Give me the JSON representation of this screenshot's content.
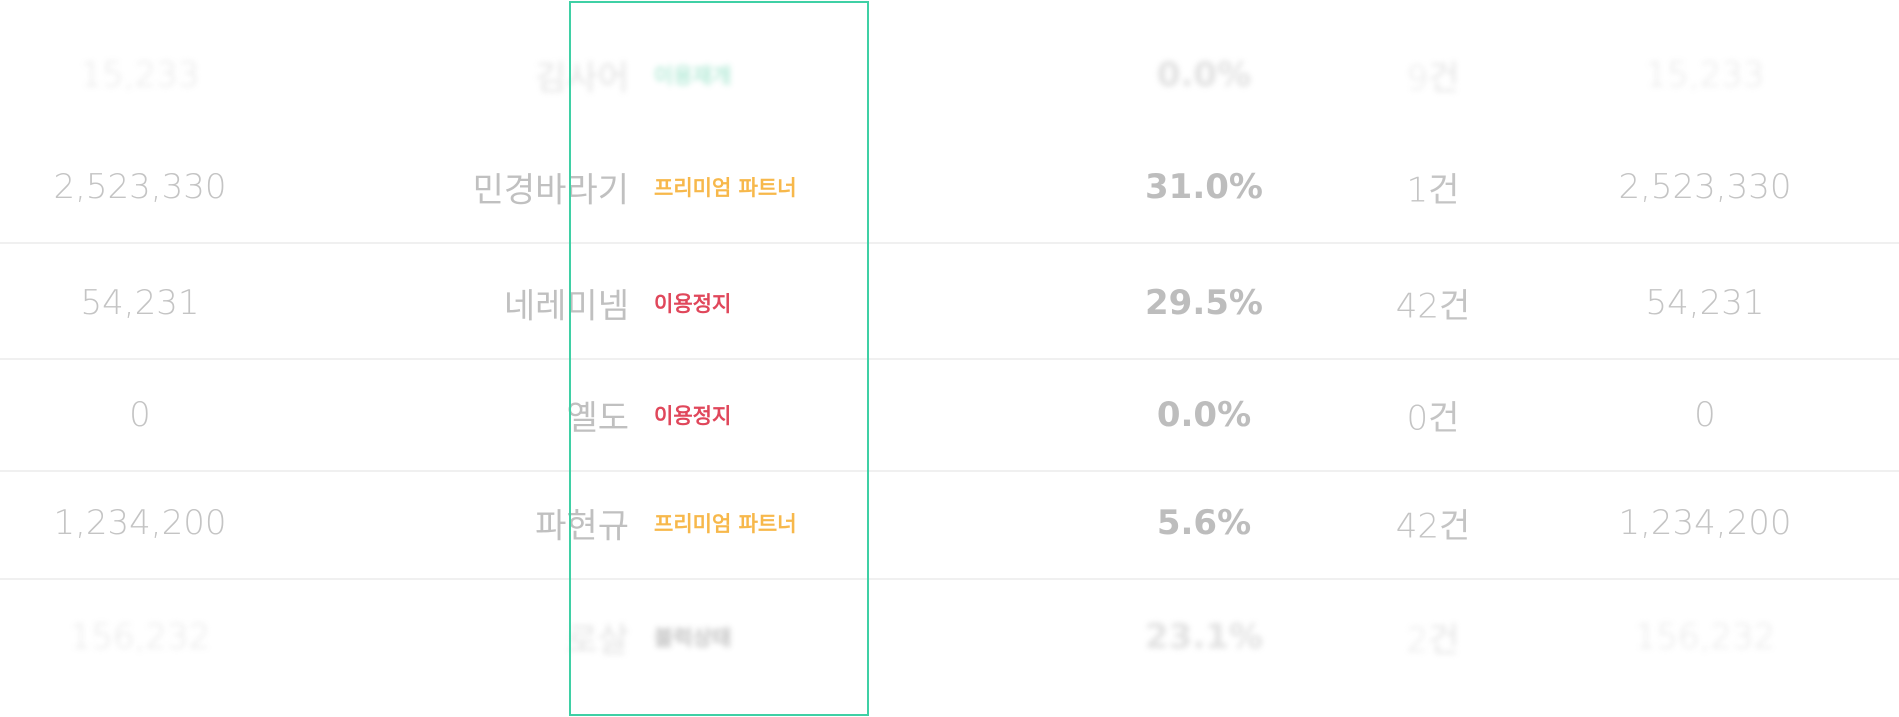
{
  "table": {
    "rows": [
      {
        "amount": "15,233",
        "name": "김사어",
        "status": "이용재개",
        "rate": "0.0%",
        "count": "9건",
        "total": "15,233"
      },
      {
        "amount": "2,523,330",
        "name": "민경바라기",
        "status": "프리미엄 파트너",
        "rate": "31.0%",
        "count": "1건",
        "total": "2,523,330"
      },
      {
        "amount": "54,231",
        "name": "네레미넴",
        "status": "이용정지",
        "rate": "29.5%",
        "count": "42건",
        "total": "54,231"
      },
      {
        "amount": "0",
        "name": "옐도",
        "status": "이용정지",
        "rate": "0.0%",
        "count": "0건",
        "total": "0"
      },
      {
        "amount": "1,234,200",
        "name": "파현규",
        "status": "프리미엄 파트너",
        "rate": "5.6%",
        "count": "42건",
        "total": "1,234,200"
      },
      {
        "amount": "156,232",
        "name": "로살",
        "status": "블럭상태",
        "rate": "23.1%",
        "count": "2건",
        "total": "156,232"
      }
    ]
  }
}
